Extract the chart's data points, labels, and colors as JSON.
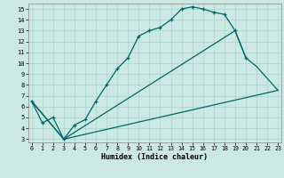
{
  "xlabel": "Humidex (Indice chaleur)",
  "bg_color": "#cce8e2",
  "grid_color": "#aad4cc",
  "line_color": "#006666",
  "xlim": [
    -0.3,
    23.3
  ],
  "ylim": [
    2.7,
    15.5
  ],
  "xticks": [
    0,
    1,
    2,
    3,
    4,
    5,
    6,
    7,
    8,
    9,
    10,
    11,
    12,
    13,
    14,
    15,
    16,
    17,
    18,
    19,
    20,
    21,
    22,
    23
  ],
  "yticks": [
    3,
    4,
    5,
    6,
    7,
    8,
    9,
    10,
    11,
    12,
    13,
    14,
    15
  ],
  "curve1_x": [
    0,
    1,
    2,
    3,
    4,
    5,
    6,
    7,
    8,
    9,
    10,
    11,
    12,
    13,
    14,
    15,
    16,
    17,
    18,
    19,
    20
  ],
  "curve1_y": [
    6.5,
    4.5,
    5.0,
    3.0,
    4.3,
    4.8,
    6.5,
    8.0,
    9.5,
    10.5,
    12.5,
    13.0,
    13.3,
    14.0,
    15.0,
    15.2,
    15.0,
    14.7,
    14.5,
    13.0,
    10.5
  ],
  "curve2_x": [
    0,
    3,
    19,
    20,
    21,
    23
  ],
  "curve2_y": [
    6.5,
    3.0,
    13.0,
    10.5,
    9.7,
    7.5
  ],
  "curve3_x": [
    0,
    3,
    23
  ],
  "curve3_y": [
    6.5,
    3.0,
    7.5
  ]
}
